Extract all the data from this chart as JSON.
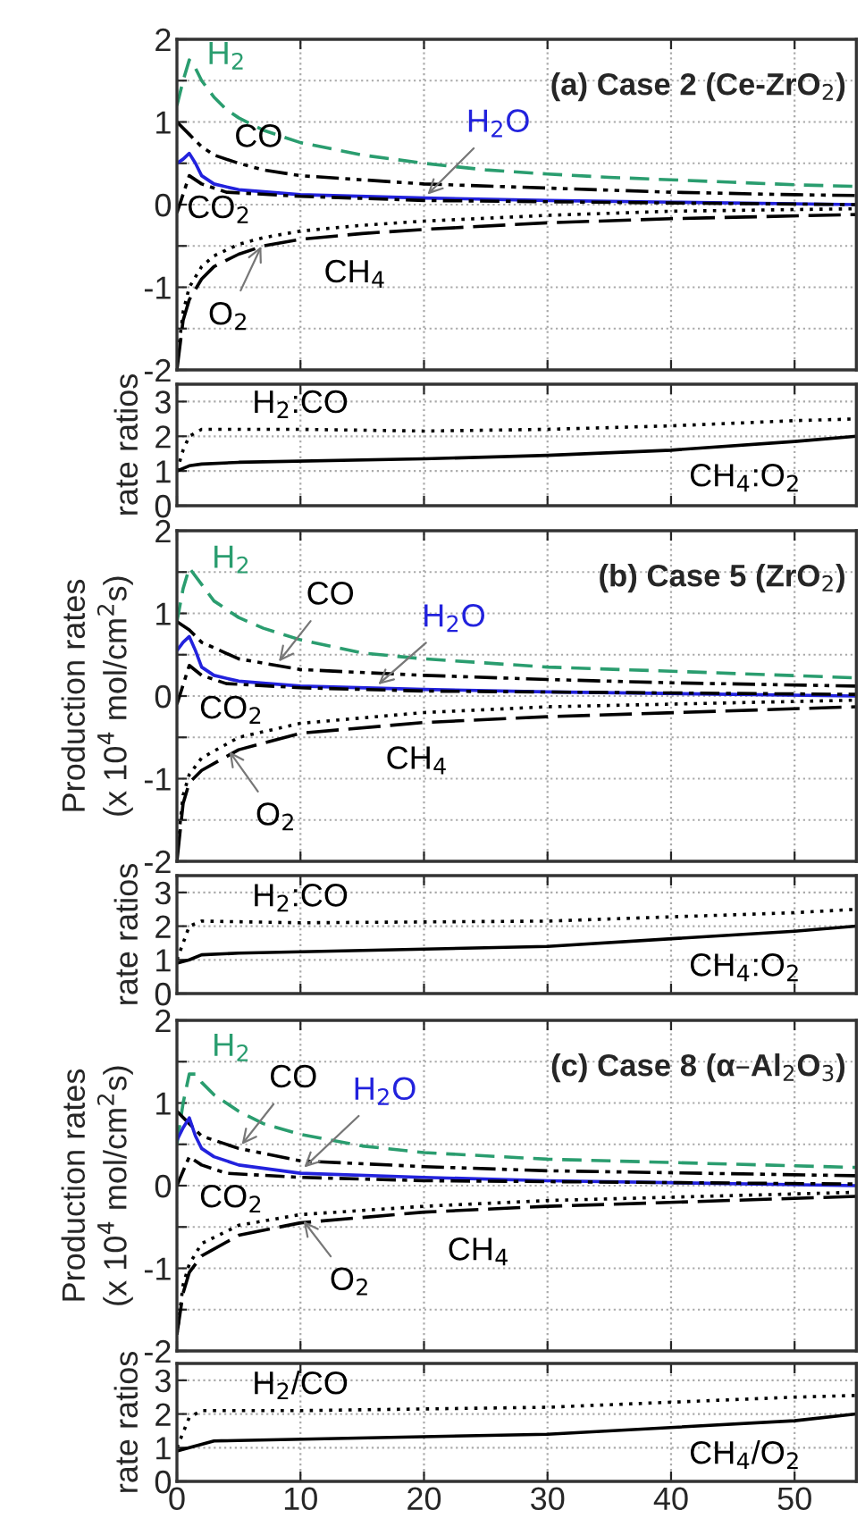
{
  "chart_data": [
    {
      "type": "line",
      "title": "(a) Case 2 (Ce-ZrO$_{2}$)",
      "xlim": [
        0,
        55
      ],
      "xticks": [
        0,
        10,
        20,
        30,
        40,
        50
      ],
      "ylim": [
        -2,
        2
      ],
      "yticks": [
        -2,
        {
          "value": -1.5,
          "label": null
        },
        -1,
        {
          "value": -0.5,
          "label": null
        },
        0,
        {
          "value": 0.5,
          "label": null
        },
        1,
        {
          "value": 1.5,
          "label": null
        },
        2
      ],
      "tick_labels": "y",
      "grid": true,
      "series": [
        {
          "color": "#2a9d6f",
          "line_style": "dashed",
          "x": [
            0,
            0.5,
            1,
            1.5,
            2,
            3,
            4,
            5,
            7,
            10,
            15,
            20,
            25,
            30,
            35,
            40,
            45,
            50,
            55
          ],
          "values": [
            1.2,
            1.5,
            1.75,
            1.65,
            1.5,
            1.3,
            1.15,
            1.05,
            0.9,
            0.75,
            0.6,
            0.5,
            0.42,
            0.37,
            0.33,
            0.3,
            0.27,
            0.24,
            0.22
          ]
        },
        {
          "color": "#000000",
          "line_style": "dashdotdot",
          "x": [
            0,
            1,
            2,
            3,
            5,
            7,
            10,
            15,
            20,
            30,
            40,
            50,
            55
          ],
          "values": [
            1.0,
            0.85,
            0.7,
            0.6,
            0.5,
            0.42,
            0.35,
            0.3,
            0.25,
            0.2,
            0.15,
            0.12,
            0.11
          ]
        },
        {
          "color": "#2222dd",
          "line_style": "solid",
          "x": [
            0,
            0.5,
            1,
            1.5,
            2,
            3,
            5,
            10,
            20,
            30,
            40,
            55
          ],
          "values": [
            0.5,
            0.55,
            0.62,
            0.5,
            0.35,
            0.25,
            0.18,
            0.12,
            0.08,
            0.05,
            0.03,
            0.0
          ]
        },
        {
          "color": "#000000",
          "line_style": "dashdot",
          "x": [
            0,
            1,
            2,
            4,
            10,
            20,
            40,
            55
          ],
          "values": [
            -0.1,
            0.35,
            0.25,
            0.15,
            0.1,
            0.05,
            0.02,
            0.0
          ]
        },
        {
          "color": "#000000",
          "line_style": "longdash",
          "x": [
            0,
            0.5,
            1,
            2,
            3,
            5,
            7,
            10,
            15,
            20,
            30,
            40,
            55
          ],
          "values": [
            -2.0,
            -1.4,
            -1.15,
            -0.9,
            -0.75,
            -0.6,
            -0.5,
            -0.42,
            -0.35,
            -0.3,
            -0.22,
            -0.17,
            -0.12
          ]
        },
        {
          "color": "#000000",
          "line_style": "dotted",
          "x": [
            0,
            0.5,
            1,
            2,
            3,
            5,
            7,
            10,
            15,
            20,
            30,
            40,
            55
          ],
          "values": [
            -1.9,
            -1.3,
            -1.0,
            -0.75,
            -0.62,
            -0.48,
            -0.4,
            -0.32,
            -0.25,
            -0.2,
            -0.13,
            -0.08,
            -0.05
          ]
        }
      ],
      "annotations": [
        {
          "text": "H$_{2}$",
          "x": 2,
          "y": 1.5
        },
        {
          "text": "CO",
          "x": 5,
          "y": 0.5
        },
        {
          "text": "H$_{2}$O",
          "x": 20,
          "y": 0.08
        },
        {
          "text": "CO$_{2}$",
          "x": 1,
          "y": 0.3
        },
        {
          "text": "CH$_{4}$",
          "x": 10,
          "y": -0.42
        },
        {
          "text": "O$_{2}$",
          "x": 7,
          "y": -0.45
        }
      ]
    },
    {
      "type": "line",
      "ylabel": "rate ratios",
      "xlim": [
        0,
        55
      ],
      "xticks": [
        0,
        10,
        20,
        30,
        40,
        50
      ],
      "ylim": [
        0,
        3.5
      ],
      "yticks": [
        0,
        1,
        2,
        3
      ],
      "tick_labels": "y",
      "grid": true,
      "series": [
        {
          "color": "#000000",
          "line_style": "dotted",
          "x": [
            0,
            0.5,
            1,
            2,
            10,
            20,
            30,
            40,
            50,
            55
          ],
          "values": [
            1.0,
            1.6,
            2.0,
            2.2,
            2.2,
            2.15,
            2.2,
            2.3,
            2.45,
            2.5
          ]
        },
        {
          "color": "#000000",
          "line_style": "solid",
          "x": [
            0,
            1,
            2,
            5,
            20,
            30,
            40,
            50,
            55
          ],
          "values": [
            1.0,
            1.15,
            1.2,
            1.25,
            1.35,
            1.45,
            1.6,
            1.85,
            2.0
          ]
        }
      ],
      "annotations": [
        {
          "text": "H$_{2}$:CO",
          "x": 10,
          "y": 2.2
        },
        {
          "text": "CH$_{4}$:O$_{2}$",
          "x": 48,
          "y": 1.8
        }
      ]
    },
    {
      "type": "line",
      "title": "(b) Case 5 (ZrO$_{2}$)",
      "ylabel": "Production rates\n(x 10$^{4}$ mol/cm$^{2}$s)",
      "xlim": [
        0,
        55
      ],
      "xticks": [
        0,
        10,
        20,
        30,
        40,
        50
      ],
      "ylim": [
        -2,
        2
      ],
      "yticks": [
        -2,
        {
          "value": -1.5,
          "label": null
        },
        -1,
        {
          "value": -0.5,
          "label": null
        },
        0,
        {
          "value": 0.5,
          "label": null
        },
        1,
        {
          "value": 1.5,
          "label": null
        },
        2
      ],
      "tick_labels": "y",
      "grid": true,
      "series": [
        {
          "color": "#2a9d6f",
          "line_style": "dashed",
          "x": [
            0,
            0.5,
            1,
            2,
            3,
            5,
            7,
            10,
            15,
            20,
            30,
            40,
            55
          ],
          "values": [
            0.9,
            1.3,
            1.55,
            1.35,
            1.15,
            0.95,
            0.82,
            0.68,
            0.52,
            0.45,
            0.35,
            0.3,
            0.22
          ]
        },
        {
          "color": "#000000",
          "line_style": "dashdotdot",
          "x": [
            0,
            1,
            2,
            5,
            10,
            20,
            30,
            40,
            55
          ],
          "values": [
            0.9,
            0.8,
            0.65,
            0.45,
            0.32,
            0.25,
            0.2,
            0.16,
            0.12
          ]
        },
        {
          "color": "#2222dd",
          "line_style": "solid",
          "x": [
            0,
            0.5,
            1,
            1.5,
            2,
            3,
            5,
            10,
            20,
            30,
            55
          ],
          "values": [
            0.55,
            0.65,
            0.72,
            0.55,
            0.35,
            0.25,
            0.18,
            0.12,
            0.08,
            0.05,
            0.0
          ]
        },
        {
          "color": "#000000",
          "line_style": "dashdot",
          "x": [
            0,
            1,
            2,
            4,
            10,
            20,
            55
          ],
          "values": [
            -0.1,
            0.37,
            0.25,
            0.15,
            0.1,
            0.06,
            0.02
          ]
        },
        {
          "color": "#000000",
          "line_style": "longdash",
          "x": [
            0,
            0.5,
            1,
            2,
            5,
            10,
            20,
            30,
            55
          ],
          "values": [
            -2.0,
            -1.3,
            -1.05,
            -0.9,
            -0.65,
            -0.45,
            -0.32,
            -0.25,
            -0.13
          ]
        },
        {
          "color": "#000000",
          "line_style": "dotted",
          "x": [
            0,
            0.5,
            1,
            2,
            5,
            10,
            20,
            30,
            55
          ],
          "values": [
            -1.9,
            -1.2,
            -0.95,
            -0.75,
            -0.5,
            -0.33,
            -0.2,
            -0.13,
            -0.05
          ]
        }
      ],
      "annotations": [
        {
          "text": "H$_{2}$",
          "x": 2,
          "y": 1.35
        },
        {
          "text": "CO",
          "x": 8,
          "y": 0.37
        },
        {
          "text": "H$_{2}$O",
          "x": 16,
          "y": 0.1
        },
        {
          "text": "CO$_{2}$",
          "x": 2,
          "y": 0.25
        },
        {
          "text": "CH$_{4}$",
          "x": 15,
          "y": -0.36
        },
        {
          "text": "O$_{2}$",
          "x": 4,
          "y": -0.62
        }
      ]
    },
    {
      "type": "line",
      "ylabel": "rate ratios",
      "xlim": [
        0,
        55
      ],
      "xticks": [
        0,
        10,
        20,
        30,
        40,
        50
      ],
      "ylim": [
        0,
        3.5
      ],
      "yticks": [
        0,
        1,
        2,
        3
      ],
      "tick_labels": "y",
      "grid": true,
      "series": [
        {
          "color": "#000000",
          "line_style": "dotted",
          "x": [
            0,
            1,
            2,
            10,
            30,
            50,
            55
          ],
          "values": [
            1.0,
            2.0,
            2.15,
            2.1,
            2.15,
            2.4,
            2.5
          ]
        },
        {
          "color": "#000000",
          "line_style": "solid",
          "x": [
            0,
            1,
            2,
            5,
            30,
            50,
            55
          ],
          "values": [
            0.9,
            1.0,
            1.15,
            1.2,
            1.4,
            1.85,
            2.0
          ]
        }
      ],
      "annotations": [
        {
          "text": "H$_{2}$:CO",
          "x": 10,
          "y": 2.1
        },
        {
          "text": "CH$_{4}$:O$_{2}$",
          "x": 48,
          "y": 1.8
        }
      ]
    },
    {
      "type": "line",
      "title": "(c) Case 8 (α–Al$_{2}$O$_{3}$)",
      "ylabel": "Production rates\n(x 10$^{4}$ mol/cm$^{2}$s)",
      "xlim": [
        0,
        55
      ],
      "xticks": [
        0,
        10,
        20,
        30,
        40,
        50
      ],
      "ylim": [
        -2,
        2
      ],
      "yticks": [
        -2,
        {
          "value": -1.5,
          "label": null
        },
        -1,
        {
          "value": -0.5,
          "label": null
        },
        0,
        {
          "value": 0.5,
          "label": null
        },
        1,
        {
          "value": 1.5,
          "label": null
        },
        2
      ],
      "tick_labels": "y",
      "grid": true,
      "series": [
        {
          "color": "#2a9d6f",
          "line_style": "dashed",
          "x": [
            0,
            0.5,
            1,
            1.5,
            2,
            3,
            5,
            7,
            10,
            15,
            20,
            30,
            40,
            55
          ],
          "values": [
            0.5,
            1.0,
            1.35,
            1.35,
            1.25,
            1.1,
            0.9,
            0.75,
            0.62,
            0.48,
            0.4,
            0.32,
            0.28,
            0.22
          ]
        },
        {
          "color": "#000000",
          "line_style": "dashdotdot",
          "x": [
            0,
            1,
            2,
            5,
            10,
            20,
            30,
            55
          ],
          "values": [
            0.9,
            0.75,
            0.6,
            0.45,
            0.3,
            0.23,
            0.18,
            0.12
          ]
        },
        {
          "color": "#2222dd",
          "line_style": "solid",
          "x": [
            0,
            0.5,
            1,
            1.5,
            2,
            3,
            5,
            10,
            20,
            30,
            55
          ],
          "values": [
            0.55,
            0.7,
            0.82,
            0.6,
            0.45,
            0.35,
            0.25,
            0.15,
            0.1,
            0.06,
            0.0
          ]
        },
        {
          "color": "#000000",
          "line_style": "dashdot",
          "x": [
            0,
            1,
            2,
            4,
            10,
            20,
            55
          ],
          "values": [
            0.0,
            0.35,
            0.25,
            0.15,
            0.1,
            0.06,
            0.02
          ]
        },
        {
          "color": "#000000",
          "line_style": "longdash",
          "x": [
            0,
            0.5,
            1,
            2,
            5,
            10,
            20,
            30,
            55
          ],
          "values": [
            -1.8,
            -1.3,
            -1.05,
            -0.85,
            -0.6,
            -0.45,
            -0.32,
            -0.25,
            -0.13
          ]
        },
        {
          "color": "#000000",
          "line_style": "dotted",
          "x": [
            0,
            0.5,
            1,
            2,
            5,
            10,
            20,
            30,
            55
          ],
          "values": [
            -1.8,
            -1.2,
            -0.95,
            -0.7,
            -0.48,
            -0.35,
            -0.25,
            -0.18,
            -0.08
          ]
        }
      ],
      "annotations": [
        {
          "text": "H$_{2}$",
          "x": 2,
          "y": 1.25
        },
        {
          "text": "CO",
          "x": 5,
          "y": 0.45
        },
        {
          "text": "H$_{2}$O",
          "x": 10,
          "y": 0.18
        },
        {
          "text": "CO$_{2}$",
          "x": 2,
          "y": 0.2
        },
        {
          "text": "CH$_{4}$",
          "x": 20,
          "y": -0.32
        },
        {
          "text": "O$_{2}$",
          "x": 10,
          "y": -0.38
        }
      ]
    },
    {
      "type": "line",
      "ylabel": "rate ratios",
      "xlim": [
        0,
        55
      ],
      "xticks": [
        0,
        10,
        20,
        30,
        40,
        50
      ],
      "ylim": [
        0,
        3.5
      ],
      "yticks": [
        0,
        1,
        2,
        3
      ],
      "grid": true,
      "series": [
        {
          "color": "#000000",
          "line_style": "dotted",
          "x": [
            0,
            1,
            2,
            10,
            30,
            50,
            55
          ],
          "values": [
            1.0,
            1.9,
            2.1,
            2.1,
            2.2,
            2.5,
            2.55
          ]
        },
        {
          "color": "#000000",
          "line_style": "solid",
          "x": [
            0,
            1,
            2,
            3,
            30,
            50,
            55
          ],
          "values": [
            0.9,
            1.0,
            1.1,
            1.2,
            1.4,
            1.8,
            2.0
          ]
        }
      ],
      "annotations": [
        {
          "text": "H$_{2}$/CO",
          "x": 10,
          "y": 2.1
        },
        {
          "text": "CH$_{4}$/O$_{2}$",
          "x": 48,
          "y": 1.8
        }
      ]
    }
  ]
}
